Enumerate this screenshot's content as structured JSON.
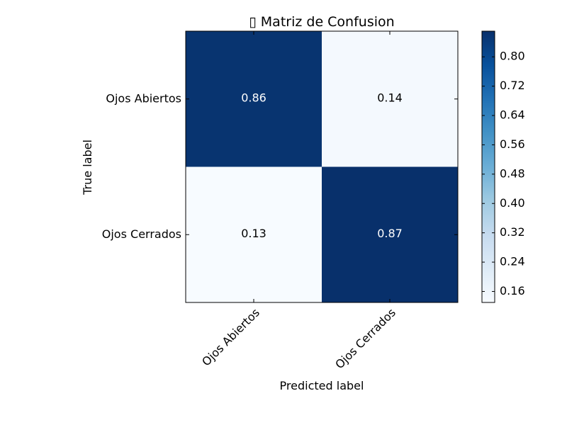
{
  "chart_data": {
    "type": "heatmap",
    "title": "▯ Matriz de Confusion",
    "xlabel": "Predicted label",
    "ylabel": "True label",
    "x_categories": [
      "Ojos Abiertos",
      "Ojos Cerrados"
    ],
    "y_categories": [
      "Ojos Abiertos",
      "Ojos Cerrados"
    ],
    "values": [
      [
        0.86,
        0.14
      ],
      [
        0.13,
        0.87
      ]
    ],
    "cell_labels": [
      [
        "0.86",
        "0.14"
      ],
      [
        "0.13",
        "0.87"
      ]
    ],
    "colormap": "Blues",
    "colorbar": {
      "range": [
        0.13,
        0.87
      ],
      "ticks": [
        0.16,
        0.24,
        0.32,
        0.4,
        0.48,
        0.56,
        0.64,
        0.72,
        0.8
      ],
      "tick_labels": [
        "0.16",
        "0.24",
        "0.32",
        "0.40",
        "0.48",
        "0.56",
        "0.64",
        "0.72",
        "0.80"
      ]
    },
    "colors": {
      "low": "#f7fbff",
      "high": "#08306b",
      "text_on_dark": "#ffffff",
      "text_on_light": "#000000"
    }
  }
}
